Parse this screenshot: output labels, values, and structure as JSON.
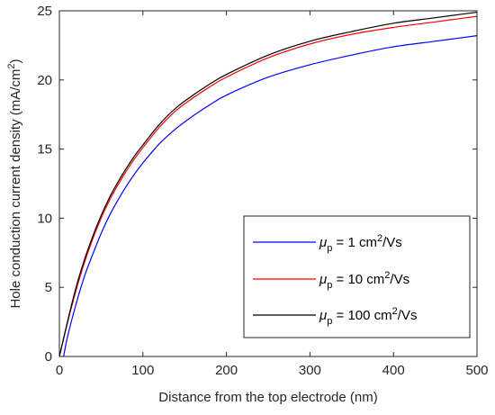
{
  "chart_data": {
    "type": "line",
    "title": "",
    "xlabel": "Distance from the top electrode (nm)",
    "ylabel": "Hole conduction current density (mA/cm2)",
    "ylabel_parts": {
      "main": "Hole conduction current density (mA/cm",
      "sup": "2",
      "close": ")"
    },
    "xlim": [
      0,
      500
    ],
    "ylim": [
      0,
      25
    ],
    "xticks": [
      0,
      100,
      200,
      300,
      400,
      500
    ],
    "yticks": [
      0,
      5,
      10,
      15,
      20,
      25
    ],
    "grid": false,
    "legend_position": "lower-right",
    "series": [
      {
        "name": "μp = 1 cm2/Vs",
        "legend": {
          "mu": "μ",
          "sub": "p",
          "pre": " = 1 cm",
          "sup": "2",
          "post": "/Vs"
        },
        "color": "#0000ff",
        "x": [
          5,
          10,
          20,
          30,
          40,
          50,
          60,
          70,
          80,
          90,
          100,
          120,
          140,
          160,
          180,
          200,
          250,
          300,
          350,
          400,
          450,
          500
        ],
        "y": [
          0,
          1.5,
          3.8,
          5.8,
          7.4,
          8.9,
          10.2,
          11.3,
          12.3,
          13.2,
          14.0,
          15.4,
          16.5,
          17.4,
          18.2,
          18.9,
          20.2,
          21.1,
          21.8,
          22.4,
          22.8,
          23.2
        ]
      },
      {
        "name": "μp = 10 cm2/Vs",
        "legend": {
          "mu": "μ",
          "sub": "p",
          "pre": " = 10 cm",
          "sup": "2",
          "post": "/Vs"
        },
        "color": "#ff0000",
        "x": [
          0,
          10,
          20,
          30,
          40,
          50,
          60,
          70,
          80,
          90,
          100,
          120,
          140,
          160,
          180,
          200,
          250,
          300,
          350,
          400,
          450,
          500
        ],
        "y": [
          0,
          2.5,
          4.8,
          6.8,
          8.5,
          10.0,
          11.3,
          12.4,
          13.4,
          14.3,
          15.1,
          16.6,
          17.8,
          18.7,
          19.5,
          20.2,
          21.6,
          22.6,
          23.3,
          23.8,
          24.2,
          24.6
        ]
      },
      {
        "name": "μp = 100 cm2/Vs",
        "legend": {
          "mu": "μ",
          "sub": "p",
          "pre": " = 100 cm",
          "sup": "2",
          "post": "/Vs"
        },
        "color": "#000000",
        "x": [
          0,
          10,
          20,
          30,
          40,
          50,
          60,
          70,
          80,
          90,
          100,
          120,
          140,
          160,
          180,
          200,
          250,
          300,
          350,
          400,
          450,
          500
        ],
        "y": [
          0,
          2.6,
          5.0,
          7.0,
          8.7,
          10.2,
          11.5,
          12.6,
          13.6,
          14.5,
          15.3,
          16.8,
          18.0,
          18.9,
          19.7,
          20.4,
          21.8,
          22.8,
          23.5,
          24.1,
          24.5,
          24.9
        ]
      }
    ]
  }
}
